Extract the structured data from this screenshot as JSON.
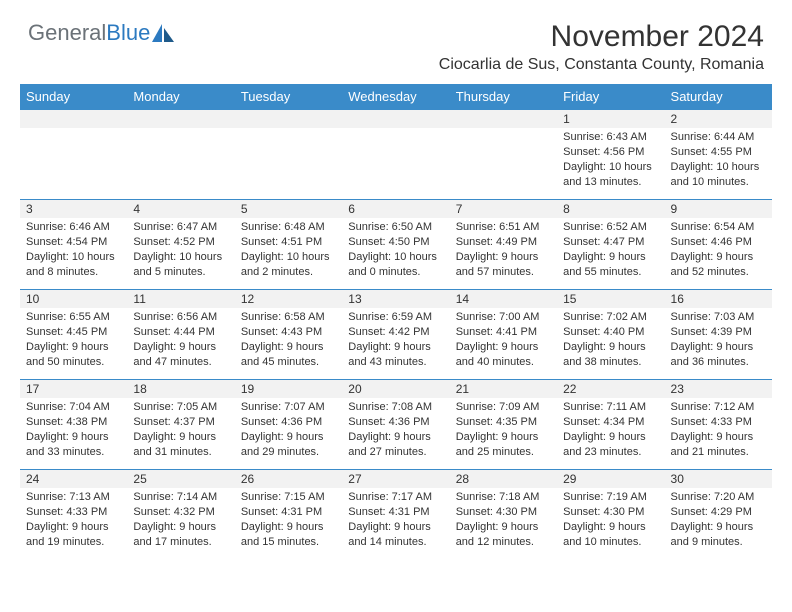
{
  "brand": {
    "general": "General",
    "blue": "Blue"
  },
  "title": "November 2024",
  "location": "Ciocarlia de Sus, Constanta County, Romania",
  "colors": {
    "header_bg": "#3a8bc9",
    "header_text": "#ffffff",
    "daynum_bg": "#f2f2f2",
    "border": "#3a8bc9",
    "text": "#333333",
    "logo_gray": "#6b7278",
    "logo_blue": "#2c7ac0",
    "page_bg": "#ffffff"
  },
  "weekdays": [
    "Sunday",
    "Monday",
    "Tuesday",
    "Wednesday",
    "Thursday",
    "Friday",
    "Saturday"
  ],
  "layout": {
    "columns": 7,
    "rows": 5,
    "cell_font_size": 11,
    "header_font_size": 13,
    "title_font_size": 30,
    "location_font_size": 16
  },
  "weeks": [
    [
      {
        "day": "",
        "sunrise": "",
        "sunset": "",
        "daylight": ""
      },
      {
        "day": "",
        "sunrise": "",
        "sunset": "",
        "daylight": ""
      },
      {
        "day": "",
        "sunrise": "",
        "sunset": "",
        "daylight": ""
      },
      {
        "day": "",
        "sunrise": "",
        "sunset": "",
        "daylight": ""
      },
      {
        "day": "",
        "sunrise": "",
        "sunset": "",
        "daylight": ""
      },
      {
        "day": "1",
        "sunrise": "Sunrise: 6:43 AM",
        "sunset": "Sunset: 4:56 PM",
        "daylight": "Daylight: 10 hours and 13 minutes."
      },
      {
        "day": "2",
        "sunrise": "Sunrise: 6:44 AM",
        "sunset": "Sunset: 4:55 PM",
        "daylight": "Daylight: 10 hours and 10 minutes."
      }
    ],
    [
      {
        "day": "3",
        "sunrise": "Sunrise: 6:46 AM",
        "sunset": "Sunset: 4:54 PM",
        "daylight": "Daylight: 10 hours and 8 minutes."
      },
      {
        "day": "4",
        "sunrise": "Sunrise: 6:47 AM",
        "sunset": "Sunset: 4:52 PM",
        "daylight": "Daylight: 10 hours and 5 minutes."
      },
      {
        "day": "5",
        "sunrise": "Sunrise: 6:48 AM",
        "sunset": "Sunset: 4:51 PM",
        "daylight": "Daylight: 10 hours and 2 minutes."
      },
      {
        "day": "6",
        "sunrise": "Sunrise: 6:50 AM",
        "sunset": "Sunset: 4:50 PM",
        "daylight": "Daylight: 10 hours and 0 minutes."
      },
      {
        "day": "7",
        "sunrise": "Sunrise: 6:51 AM",
        "sunset": "Sunset: 4:49 PM",
        "daylight": "Daylight: 9 hours and 57 minutes."
      },
      {
        "day": "8",
        "sunrise": "Sunrise: 6:52 AM",
        "sunset": "Sunset: 4:47 PM",
        "daylight": "Daylight: 9 hours and 55 minutes."
      },
      {
        "day": "9",
        "sunrise": "Sunrise: 6:54 AM",
        "sunset": "Sunset: 4:46 PM",
        "daylight": "Daylight: 9 hours and 52 minutes."
      }
    ],
    [
      {
        "day": "10",
        "sunrise": "Sunrise: 6:55 AM",
        "sunset": "Sunset: 4:45 PM",
        "daylight": "Daylight: 9 hours and 50 minutes."
      },
      {
        "day": "11",
        "sunrise": "Sunrise: 6:56 AM",
        "sunset": "Sunset: 4:44 PM",
        "daylight": "Daylight: 9 hours and 47 minutes."
      },
      {
        "day": "12",
        "sunrise": "Sunrise: 6:58 AM",
        "sunset": "Sunset: 4:43 PM",
        "daylight": "Daylight: 9 hours and 45 minutes."
      },
      {
        "day": "13",
        "sunrise": "Sunrise: 6:59 AM",
        "sunset": "Sunset: 4:42 PM",
        "daylight": "Daylight: 9 hours and 43 minutes."
      },
      {
        "day": "14",
        "sunrise": "Sunrise: 7:00 AM",
        "sunset": "Sunset: 4:41 PM",
        "daylight": "Daylight: 9 hours and 40 minutes."
      },
      {
        "day": "15",
        "sunrise": "Sunrise: 7:02 AM",
        "sunset": "Sunset: 4:40 PM",
        "daylight": "Daylight: 9 hours and 38 minutes."
      },
      {
        "day": "16",
        "sunrise": "Sunrise: 7:03 AM",
        "sunset": "Sunset: 4:39 PM",
        "daylight": "Daylight: 9 hours and 36 minutes."
      }
    ],
    [
      {
        "day": "17",
        "sunrise": "Sunrise: 7:04 AM",
        "sunset": "Sunset: 4:38 PM",
        "daylight": "Daylight: 9 hours and 33 minutes."
      },
      {
        "day": "18",
        "sunrise": "Sunrise: 7:05 AM",
        "sunset": "Sunset: 4:37 PM",
        "daylight": "Daylight: 9 hours and 31 minutes."
      },
      {
        "day": "19",
        "sunrise": "Sunrise: 7:07 AM",
        "sunset": "Sunset: 4:36 PM",
        "daylight": "Daylight: 9 hours and 29 minutes."
      },
      {
        "day": "20",
        "sunrise": "Sunrise: 7:08 AM",
        "sunset": "Sunset: 4:36 PM",
        "daylight": "Daylight: 9 hours and 27 minutes."
      },
      {
        "day": "21",
        "sunrise": "Sunrise: 7:09 AM",
        "sunset": "Sunset: 4:35 PM",
        "daylight": "Daylight: 9 hours and 25 minutes."
      },
      {
        "day": "22",
        "sunrise": "Sunrise: 7:11 AM",
        "sunset": "Sunset: 4:34 PM",
        "daylight": "Daylight: 9 hours and 23 minutes."
      },
      {
        "day": "23",
        "sunrise": "Sunrise: 7:12 AM",
        "sunset": "Sunset: 4:33 PM",
        "daylight": "Daylight: 9 hours and 21 minutes."
      }
    ],
    [
      {
        "day": "24",
        "sunrise": "Sunrise: 7:13 AM",
        "sunset": "Sunset: 4:33 PM",
        "daylight": "Daylight: 9 hours and 19 minutes."
      },
      {
        "day": "25",
        "sunrise": "Sunrise: 7:14 AM",
        "sunset": "Sunset: 4:32 PM",
        "daylight": "Daylight: 9 hours and 17 minutes."
      },
      {
        "day": "26",
        "sunrise": "Sunrise: 7:15 AM",
        "sunset": "Sunset: 4:31 PM",
        "daylight": "Daylight: 9 hours and 15 minutes."
      },
      {
        "day": "27",
        "sunrise": "Sunrise: 7:17 AM",
        "sunset": "Sunset: 4:31 PM",
        "daylight": "Daylight: 9 hours and 14 minutes."
      },
      {
        "day": "28",
        "sunrise": "Sunrise: 7:18 AM",
        "sunset": "Sunset: 4:30 PM",
        "daylight": "Daylight: 9 hours and 12 minutes."
      },
      {
        "day": "29",
        "sunrise": "Sunrise: 7:19 AM",
        "sunset": "Sunset: 4:30 PM",
        "daylight": "Daylight: 9 hours and 10 minutes."
      },
      {
        "day": "30",
        "sunrise": "Sunrise: 7:20 AM",
        "sunset": "Sunset: 4:29 PM",
        "daylight": "Daylight: 9 hours and 9 minutes."
      }
    ]
  ]
}
